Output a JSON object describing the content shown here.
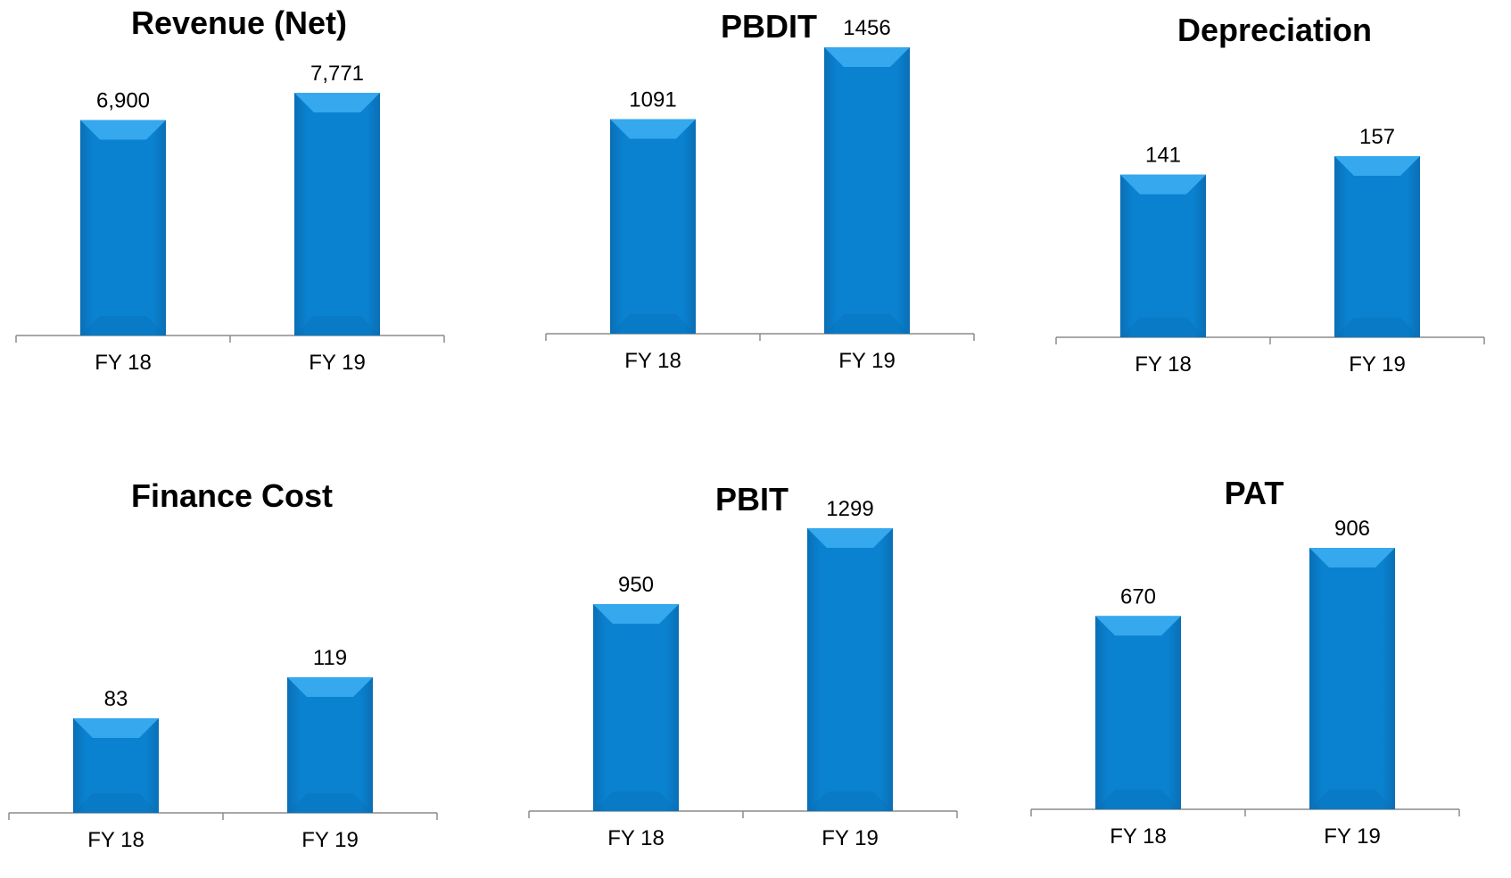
{
  "chart_data": [
    {
      "type": "bar",
      "title": "Revenue (Net)",
      "categories": [
        "FY 18",
        "FY 19"
      ],
      "values": [
        6900,
        7771
      ],
      "value_labels": [
        "6,900",
        "7,771"
      ],
      "xlabel": "",
      "ylabel": "",
      "grid": false,
      "legend": "none"
    },
    {
      "type": "bar",
      "title": "PBDIT",
      "categories": [
        "FY 18",
        "FY 19"
      ],
      "values": [
        1091,
        1456
      ],
      "value_labels": [
        "1091",
        "1456"
      ],
      "xlabel": "",
      "ylabel": "",
      "grid": false,
      "legend": "none"
    },
    {
      "type": "bar",
      "title": "Depreciation",
      "categories": [
        "FY 18",
        "FY 19"
      ],
      "values": [
        141,
        157
      ],
      "value_labels": [
        "141",
        "157"
      ],
      "xlabel": "",
      "ylabel": "",
      "grid": false,
      "legend": "none"
    },
    {
      "type": "bar",
      "title": "Finance Cost",
      "categories": [
        "FY 18",
        "FY 19"
      ],
      "values": [
        83,
        119
      ],
      "value_labels": [
        "83",
        "119"
      ],
      "xlabel": "",
      "ylabel": "",
      "grid": false,
      "legend": "none"
    },
    {
      "type": "bar",
      "title": "PBIT",
      "categories": [
        "FY 18",
        "FY 19"
      ],
      "values": [
        950,
        1299
      ],
      "value_labels": [
        "950",
        "1299"
      ],
      "xlabel": "",
      "ylabel": "",
      "grid": false,
      "legend": "none"
    },
    {
      "type": "bar",
      "title": "PAT",
      "categories": [
        "FY 18",
        "FY 19"
      ],
      "values": [
        670,
        906
      ],
      "value_labels": [
        "670",
        "906"
      ],
      "xlabel": "",
      "ylabel": "",
      "grid": false,
      "legend": "none"
    }
  ],
  "colors": {
    "bar_main": "#0a82d0",
    "bar_top": "#35a8ee",
    "bar_dark": "#0a6fb5",
    "axis": "#8c8c8c"
  }
}
